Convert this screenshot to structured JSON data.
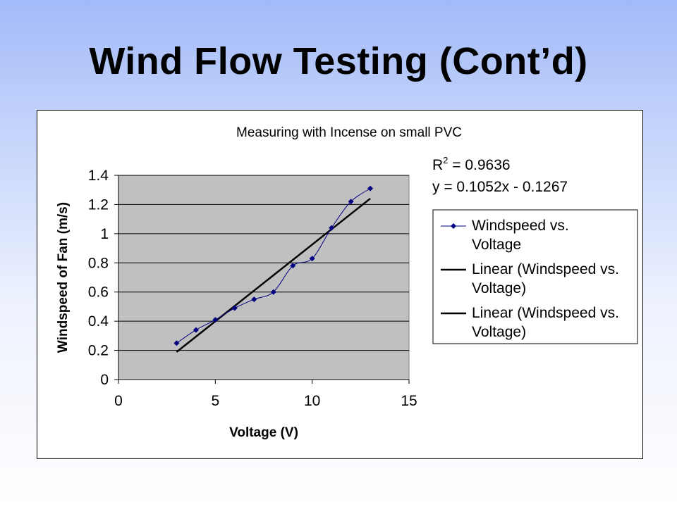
{
  "slide": {
    "title": "Wind Flow Testing (Cont’d)"
  },
  "colors": {
    "plot_area": "#c0c0c0",
    "series_marker": "#000080",
    "trendline": "#000000"
  },
  "chart_data": {
    "type": "scatter",
    "title": "Measuring with Incense on small PVC",
    "xlabel": "Voltage (V)",
    "ylabel": "Windspeed of Fan (m/s)",
    "xlim": [
      0,
      15
    ],
    "ylim": [
      0,
      1.4
    ],
    "x_ticks": [
      "0",
      "5",
      "10",
      "15"
    ],
    "y_ticks": [
      "0",
      "0.2",
      "0.4",
      "0.6",
      "0.8",
      "1",
      "1.2",
      "1.4"
    ],
    "grid": "horizontal",
    "legend_position": "right",
    "series": [
      {
        "name": "Windspeed vs. Voltage",
        "style": "smoothed line with diamond markers",
        "x": [
          3,
          4,
          5,
          6,
          7,
          8,
          9,
          10,
          11,
          12,
          13
        ],
        "y": [
          0.25,
          0.34,
          0.41,
          0.49,
          0.55,
          0.6,
          0.78,
          0.83,
          1.04,
          1.22,
          1.31
        ]
      }
    ],
    "trendline": {
      "name": "Linear (Windspeed vs. Voltage)",
      "slope": 0.1052,
      "intercept": -0.1267,
      "x_range": [
        3,
        13
      ],
      "equation_text": "y = 0.1052x - 0.1267",
      "r2_label": "R",
      "r2_exponent": "2",
      "r2_value": " = 0.9636"
    },
    "legend": [
      {
        "line1": "Windspeed vs.",
        "line2": "Voltage"
      },
      {
        "line1": "Linear (Windspeed vs.",
        "line2": "Voltage)"
      },
      {
        "line1": "Linear (Windspeed vs.",
        "line2": "Voltage)"
      }
    ]
  }
}
